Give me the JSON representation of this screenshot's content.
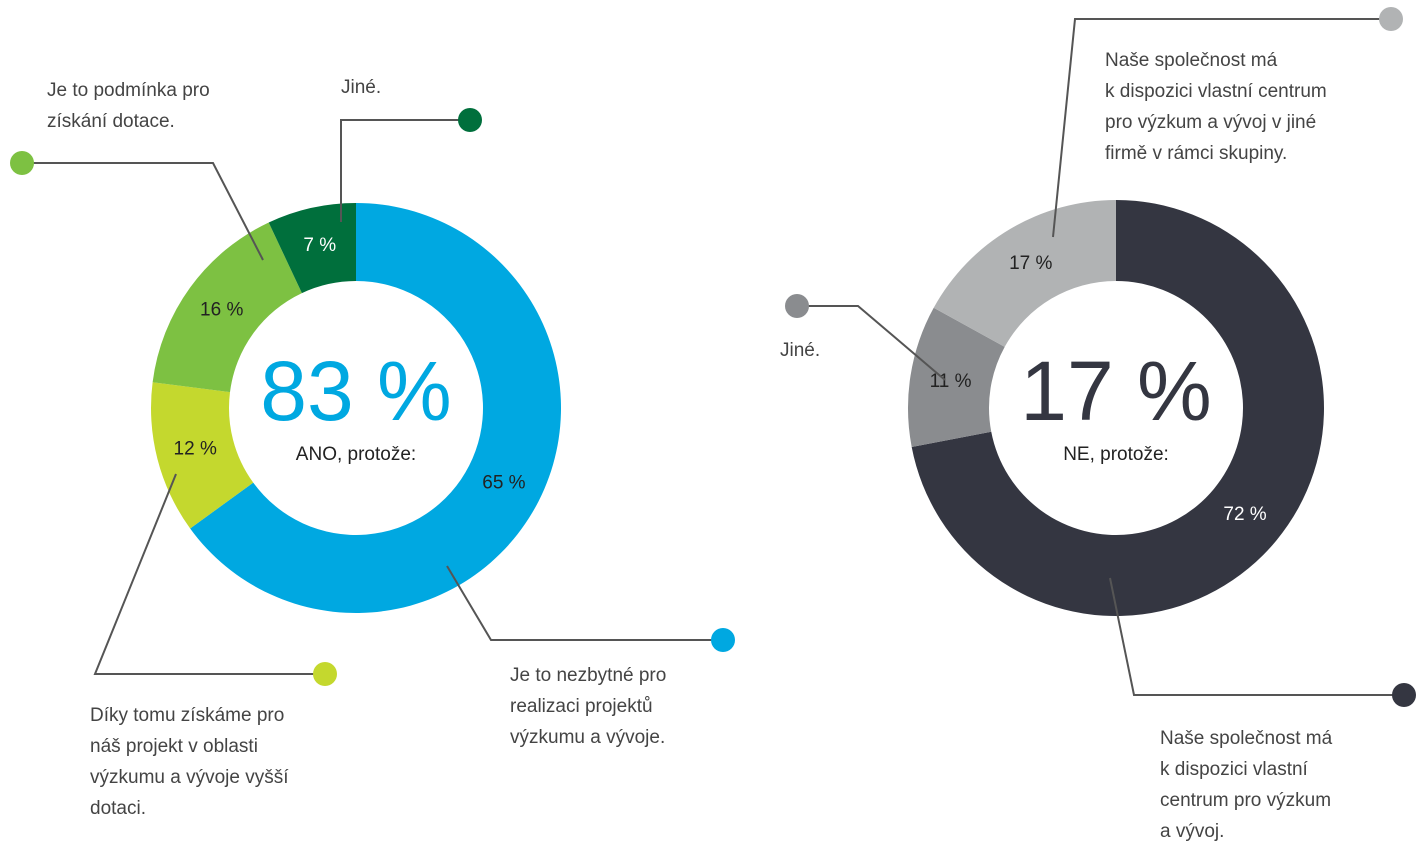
{
  "chart_data": [
    {
      "type": "pie",
      "center_value": "83 %",
      "center_text": "ANO, protože:",
      "categories": [
        "Je to nezbytné pro\nrealizaci projektů\nvýzkumu a vývoje.",
        "Díky tomu získáme pro\nnáš projekt v oblasti\nvýzkumu a vývoje vyšší\ndotaci.",
        "Je to podmínka pro\nzískání dotace.",
        "Jiné."
      ],
      "values": [
        65,
        12,
        16,
        7
      ],
      "value_labels": [
        "65 %",
        "12 %",
        "16 %",
        "7 %"
      ],
      "colors": [
        "#00a8e1",
        "#c4d82e",
        "#7dc142",
        "#006f3c"
      ]
    },
    {
      "type": "pie",
      "center_value": "17 %",
      "center_text": "NE, protože:",
      "categories": [
        "Naše společnost má\nk dispozici vlastní\ncentrum pro výzkum\na vývoj.",
        "Jiné.",
        "Naše společnost má\nk dispozici vlastní centrum\npro výzkum a vývoj v jiné\nfirmě v rámci skupiny."
      ],
      "values": [
        72,
        11,
        17
      ],
      "value_labels": [
        "72 %",
        "11 %",
        "17 %"
      ],
      "colors": [
        "#343641",
        "#8a8c8f",
        "#b1b3b4"
      ]
    }
  ]
}
